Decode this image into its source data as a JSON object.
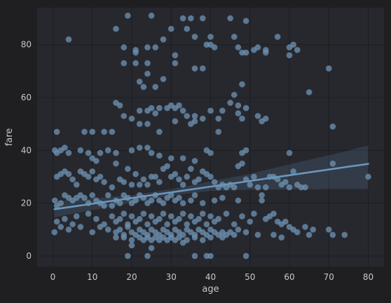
{
  "chart_data": {
    "type": "scatter",
    "title": "",
    "xlabel": "age",
    "ylabel": "fare",
    "xlim": [
      -4,
      84
    ],
    "ylim": [
      -4,
      94
    ],
    "x_ticks": [
      0,
      10,
      20,
      30,
      40,
      50,
      60,
      70,
      80
    ],
    "y_ticks": [
      0,
      20,
      40,
      60,
      80
    ],
    "grid": true,
    "legend": "none",
    "regression": {
      "intercept": 17.6,
      "slope": 0.216,
      "x_range": [
        0.4,
        80
      ],
      "ci_band": [
        [
          0.4,
          14.7,
          20.6
        ],
        [
          20,
          20.2,
          23.0
        ],
        [
          30,
          22.9,
          25.3
        ],
        [
          40,
          24.6,
          28.2
        ],
        [
          50,
          25.1,
          31.1
        ],
        [
          60,
          25.2,
          34.7
        ],
        [
          70,
          25.3,
          38.1
        ],
        [
          80,
          25.4,
          41.8
        ]
      ]
    },
    "colors": {
      "background": "#1f1f22",
      "plot_background": "#27282e",
      "grid": "#1c1d21",
      "points": "#6b8fae",
      "line": "#6c96bc",
      "text": "#c8c8c8"
    },
    "points": [
      [
        4,
        82
      ],
      [
        16,
        86
      ],
      [
        19,
        91
      ],
      [
        25,
        91
      ],
      [
        33,
        90
      ],
      [
        35,
        90
      ],
      [
        38,
        90
      ],
      [
        45,
        90
      ],
      [
        49,
        89
      ],
      [
        30,
        86
      ],
      [
        34,
        86
      ],
      [
        36,
        83
      ],
      [
        40,
        83
      ],
      [
        46,
        83
      ],
      [
        57,
        83
      ],
      [
        18,
        79
      ],
      [
        21,
        78
      ],
      [
        21,
        77
      ],
      [
        24,
        79
      ],
      [
        26,
        79
      ],
      [
        28,
        82
      ],
      [
        31,
        76
      ],
      [
        39,
        80
      ],
      [
        40,
        80
      ],
      [
        41,
        79
      ],
      [
        47,
        79
      ],
      [
        48,
        77
      ],
      [
        49,
        77
      ],
      [
        51,
        78
      ],
      [
        52,
        79
      ],
      [
        54,
        78
      ],
      [
        54,
        77
      ],
      [
        60,
        79
      ],
      [
        60,
        76
      ],
      [
        61,
        80
      ],
      [
        62,
        78
      ],
      [
        70,
        71
      ],
      [
        18,
        73
      ],
      [
        21,
        73
      ],
      [
        24,
        73
      ],
      [
        24,
        69
      ],
      [
        28,
        67
      ],
      [
        31,
        73
      ],
      [
        36,
        71
      ],
      [
        38,
        71
      ],
      [
        22,
        66
      ],
      [
        23,
        64
      ],
      [
        26,
        64
      ],
      [
        48,
        65
      ],
      [
        46,
        61
      ],
      [
        65,
        62
      ],
      [
        16,
        58
      ],
      [
        17,
        57
      ],
      [
        18,
        53
      ],
      [
        20,
        52
      ],
      [
        22,
        55
      ],
      [
        24,
        55
      ],
      [
        25,
        56
      ],
      [
        26,
        54
      ],
      [
        27,
        56
      ],
      [
        29,
        56
      ],
      [
        30,
        57
      ],
      [
        31,
        56
      ],
      [
        32,
        57
      ],
      [
        33,
        55
      ],
      [
        34,
        53
      ],
      [
        36,
        53
      ],
      [
        38,
        52
      ],
      [
        40,
        55
      ],
      [
        42,
        52
      ],
      [
        43,
        55
      ],
      [
        45,
        58
      ],
      [
        47,
        57
      ],
      [
        47,
        54
      ],
      [
        48,
        52
      ],
      [
        49,
        56
      ],
      [
        52,
        53
      ],
      [
        53,
        51
      ],
      [
        54,
        52
      ],
      [
        22,
        50
      ],
      [
        24,
        50
      ],
      [
        27,
        47
      ],
      [
        31,
        51
      ],
      [
        35,
        50
      ],
      [
        36,
        51
      ],
      [
        42,
        47
      ],
      [
        71,
        49
      ],
      [
        1,
        47
      ],
      [
        8,
        47
      ],
      [
        10,
        47
      ],
      [
        13,
        47
      ],
      [
        15,
        47
      ],
      [
        0.5,
        40
      ],
      [
        1,
        39
      ],
      [
        2,
        40
      ],
      [
        3,
        41
      ],
      [
        4,
        39
      ],
      [
        7,
        40
      ],
      [
        9,
        39
      ],
      [
        10,
        37
      ],
      [
        11,
        36
      ],
      [
        12,
        39
      ],
      [
        14,
        40
      ],
      [
        16,
        39
      ],
      [
        20,
        40
      ],
      [
        22,
        41
      ],
      [
        24,
        41
      ],
      [
        25,
        39
      ],
      [
        27,
        38
      ],
      [
        30,
        37
      ],
      [
        33,
        37
      ],
      [
        36,
        36
      ],
      [
        39,
        40
      ],
      [
        40,
        39
      ],
      [
        48,
        39
      ],
      [
        49,
        40
      ],
      [
        60,
        39
      ],
      [
        1,
        30
      ],
      [
        2,
        31
      ],
      [
        3,
        32
      ],
      [
        4,
        31
      ],
      [
        5,
        29
      ],
      [
        6,
        27
      ],
      [
        7,
        32
      ],
      [
        8,
        31
      ],
      [
        9,
        30
      ],
      [
        10,
        32
      ],
      [
        11,
        29
      ],
      [
        12,
        30
      ],
      [
        13,
        28
      ],
      [
        15,
        26
      ],
      [
        16,
        35
      ],
      [
        17,
        29
      ],
      [
        18,
        28
      ],
      [
        19,
        33
      ],
      [
        20,
        27
      ],
      [
        21,
        31
      ],
      [
        22,
        27
      ],
      [
        23,
        29
      ],
      [
        24,
        27
      ],
      [
        25,
        30
      ],
      [
        26,
        30
      ],
      [
        27,
        28
      ],
      [
        28,
        33
      ],
      [
        29,
        34
      ],
      [
        30,
        30
      ],
      [
        31,
        31
      ],
      [
        32,
        29
      ],
      [
        33,
        27
      ],
      [
        34,
        30
      ],
      [
        35,
        33
      ],
      [
        36,
        28
      ],
      [
        37,
        29
      ],
      [
        38,
        32
      ],
      [
        39,
        31
      ],
      [
        40,
        30
      ],
      [
        41,
        28
      ],
      [
        42,
        26
      ],
      [
        43,
        27
      ],
      [
        44,
        26
      ],
      [
        45,
        27
      ],
      [
        46,
        26
      ],
      [
        47,
        34
      ],
      [
        48,
        35
      ],
      [
        49,
        29
      ],
      [
        50,
        27
      ],
      [
        51,
        30
      ],
      [
        52,
        26
      ],
      [
        53,
        23
      ],
      [
        54,
        26
      ],
      [
        55,
        30
      ],
      [
        56,
        30
      ],
      [
        57,
        29
      ],
      [
        58,
        27
      ],
      [
        59,
        28
      ],
      [
        60,
        26
      ],
      [
        61,
        32
      ],
      [
        62,
        27
      ],
      [
        63,
        26
      ],
      [
        64,
        26
      ],
      [
        71,
        35
      ],
      [
        80,
        30
      ],
      [
        0.5,
        21
      ],
      [
        1,
        19
      ],
      [
        2,
        20
      ],
      [
        3,
        23
      ],
      [
        4,
        22
      ],
      [
        5,
        21
      ],
      [
        6,
        22
      ],
      [
        7,
        23
      ],
      [
        8,
        22
      ],
      [
        9,
        20
      ],
      [
        10,
        23
      ],
      [
        11,
        21
      ],
      [
        12,
        20
      ],
      [
        13,
        19
      ],
      [
        14,
        23
      ],
      [
        15,
        19
      ],
      [
        16,
        21
      ],
      [
        17,
        20
      ],
      [
        18,
        23
      ],
      [
        19,
        22
      ],
      [
        20,
        20
      ],
      [
        21,
        21
      ],
      [
        22,
        23
      ],
      [
        23,
        22
      ],
      [
        24,
        20
      ],
      [
        25,
        21
      ],
      [
        26,
        23
      ],
      [
        27,
        21
      ],
      [
        28,
        20
      ],
      [
        29,
        22
      ],
      [
        30,
        23
      ],
      [
        31,
        21
      ],
      [
        32,
        22
      ],
      [
        33,
        20
      ],
      [
        35,
        21
      ],
      [
        36,
        23
      ],
      [
        38,
        20
      ],
      [
        41,
        21
      ],
      [
        43,
        22
      ],
      [
        47,
        21
      ],
      [
        53,
        21
      ],
      [
        1,
        13
      ],
      [
        3,
        14
      ],
      [
        5,
        12
      ],
      [
        6,
        15
      ],
      [
        9,
        16
      ],
      [
        11,
        14
      ],
      [
        13,
        12
      ],
      [
        15,
        15
      ],
      [
        16,
        13
      ],
      [
        17,
        14
      ],
      [
        18,
        16
      ],
      [
        19,
        12
      ],
      [
        20,
        15
      ],
      [
        21,
        13
      ],
      [
        22,
        14
      ],
      [
        23,
        16
      ],
      [
        24,
        12
      ],
      [
        25,
        15
      ],
      [
        26,
        13
      ],
      [
        27,
        14
      ],
      [
        28,
        16
      ],
      [
        29,
        12
      ],
      [
        30,
        15
      ],
      [
        31,
        13
      ],
      [
        32,
        14
      ],
      [
        33,
        16
      ],
      [
        34,
        12
      ],
      [
        35,
        15
      ],
      [
        36,
        13
      ],
      [
        37,
        14
      ],
      [
        38,
        16
      ],
      [
        39,
        12
      ],
      [
        40,
        15
      ],
      [
        41,
        13
      ],
      [
        42,
        14
      ],
      [
        44,
        16
      ],
      [
        46,
        12
      ],
      [
        48,
        15
      ],
      [
        50,
        13
      ],
      [
        51,
        16
      ],
      [
        54,
        14
      ],
      [
        55,
        15
      ],
      [
        56,
        16
      ],
      [
        57,
        13
      ],
      [
        58,
        12
      ],
      [
        59,
        13
      ],
      [
        60,
        11
      ],
      [
        61,
        10
      ],
      [
        62,
        9
      ],
      [
        64,
        11
      ],
      [
        65,
        8
      ],
      [
        66,
        10
      ],
      [
        70,
        10
      ],
      [
        71,
        8
      ],
      [
        74,
        8
      ],
      [
        0.4,
        9
      ],
      [
        2,
        11
      ],
      [
        4,
        10
      ],
      [
        7,
        11
      ],
      [
        10,
        9
      ],
      [
        12,
        11
      ],
      [
        14,
        10
      ],
      [
        16,
        9
      ],
      [
        17,
        10
      ],
      [
        18,
        8
      ],
      [
        19,
        11
      ],
      [
        20,
        9
      ],
      [
        21,
        8
      ],
      [
        22,
        10
      ],
      [
        23,
        9
      ],
      [
        24,
        8
      ],
      [
        25,
        10
      ],
      [
        26,
        9
      ],
      [
        27,
        8
      ],
      [
        28,
        10
      ],
      [
        29,
        9
      ],
      [
        30,
        8
      ],
      [
        31,
        10
      ],
      [
        32,
        9
      ],
      [
        33,
        8
      ],
      [
        34,
        10
      ],
      [
        35,
        9
      ],
      [
        36,
        8
      ],
      [
        37,
        10
      ],
      [
        38,
        9
      ],
      [
        39,
        8
      ],
      [
        40,
        10
      ],
      [
        41,
        9
      ],
      [
        42,
        8
      ],
      [
        43,
        9
      ],
      [
        44,
        8
      ],
      [
        45,
        9
      ],
      [
        46,
        8
      ],
      [
        47,
        10
      ],
      [
        49,
        9
      ],
      [
        52,
        8
      ],
      [
        56,
        8
      ],
      [
        58,
        7
      ],
      [
        16,
        7
      ],
      [
        18,
        7
      ],
      [
        20,
        6
      ],
      [
        22,
        7
      ],
      [
        23,
        6
      ],
      [
        24,
        7
      ],
      [
        25,
        6
      ],
      [
        26,
        7
      ],
      [
        27,
        6
      ],
      [
        28,
        7
      ],
      [
        29,
        6
      ],
      [
        30,
        7
      ],
      [
        31,
        6
      ],
      [
        32,
        7
      ],
      [
        33,
        5
      ],
      [
        34,
        6
      ],
      [
        36,
        7
      ],
      [
        38,
        6
      ],
      [
        40,
        7
      ],
      [
        43,
        7
      ],
      [
        19,
        0
      ],
      [
        20,
        4
      ],
      [
        24,
        0
      ],
      [
        25,
        3
      ],
      [
        36,
        0
      ],
      [
        39,
        0
      ],
      [
        40,
        0
      ],
      [
        49,
        0
      ]
    ]
  }
}
